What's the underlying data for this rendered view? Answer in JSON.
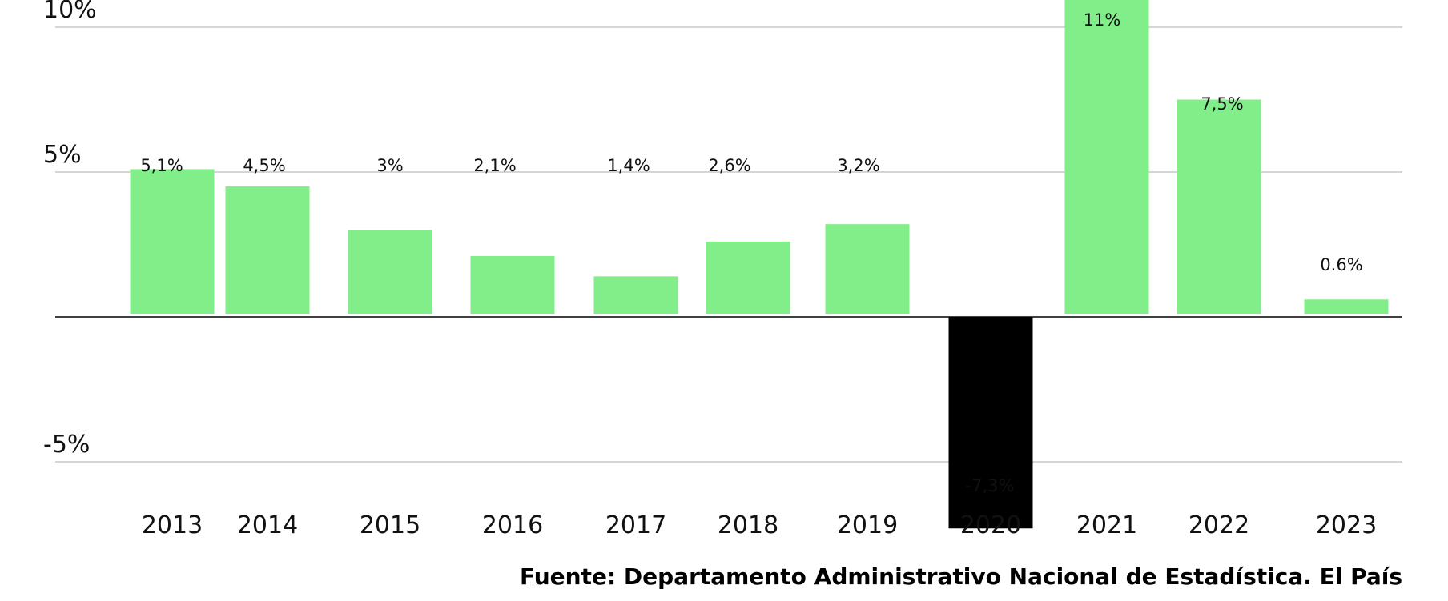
{
  "source_text": "Fuente: Departamento Administrativo Nacional de Estadística. El País",
  "chart_data": {
    "type": "bar",
    "title": "",
    "xlabel": "",
    "ylabel": "",
    "categories": [
      "2013",
      "2014",
      "2015",
      "2016",
      "2017",
      "2018",
      "2019",
      "2020",
      "2021",
      "2022",
      "2023"
    ],
    "values": [
      5.1,
      4.5,
      3,
      2.1,
      1.4,
      2.6,
      3.2,
      -7.3,
      11,
      7.5,
      0.6
    ],
    "value_labels": [
      "5,1%",
      "4,5%",
      "3%",
      "2,1%",
      "1,4%",
      "2,6%",
      "3,2%",
      "-7,3%",
      "11%",
      "7,5%",
      "0.6%"
    ],
    "yticks": [
      10,
      5,
      -5
    ],
    "ytick_labels": [
      "10%",
      "5%",
      "-5%"
    ],
    "ylim": [
      -7.6,
      11.6
    ],
    "grid": true,
    "colors": {
      "positive": "#82ee8a",
      "negative": "#000000",
      "grid": "#bdbdbd",
      "zero_line": "#000000"
    }
  }
}
